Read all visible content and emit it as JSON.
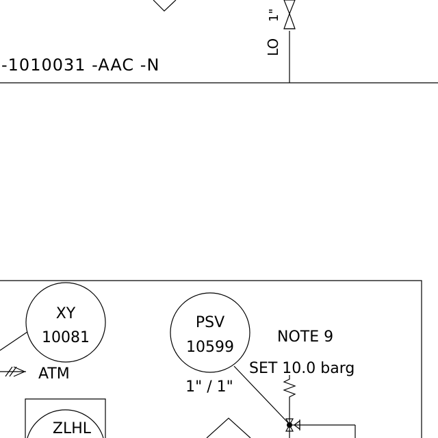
{
  "diagram": {
    "line_number": "-1010031 -AAC -N",
    "lo_label": "LO",
    "valve_size_top": "1\"",
    "instruments": [
      {
        "id": "xy",
        "tag": "XY",
        "number": "10081"
      },
      {
        "id": "psv",
        "tag": "PSV",
        "number": "10599"
      },
      {
        "id": "zlhl",
        "tag": "ZLHL",
        "number": ""
      }
    ],
    "atm_label": "ATM",
    "note_label": "NOTE 9",
    "set_pressure": "SET 10.0 barg",
    "psv_size": "1\" / 1\""
  }
}
